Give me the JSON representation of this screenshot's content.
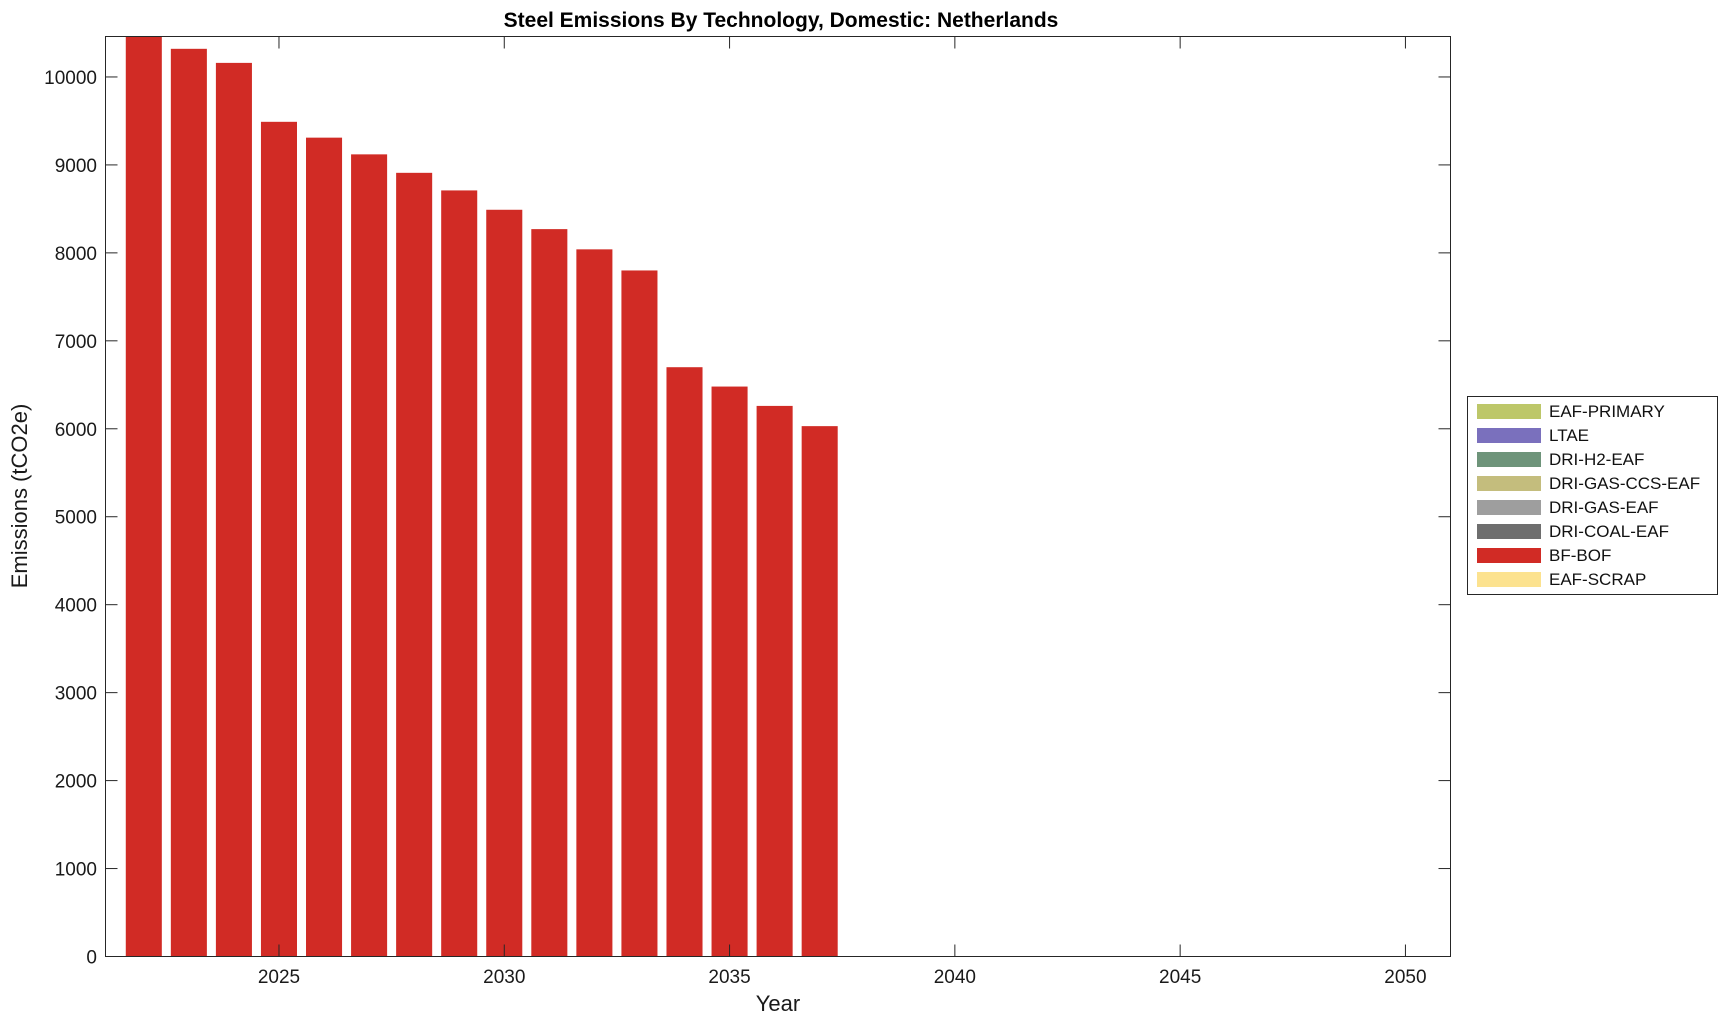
{
  "chart_data": {
    "type": "bar",
    "stacked": true,
    "title": "Steel Emissions By Technology, Domestic: Netherlands",
    "xlabel": "Year",
    "ylabel": "Emissions (tCO2e)",
    "xlim": [
      2021.15,
      2051.0
    ],
    "ylim": [
      0,
      10460
    ],
    "x_ticks": [
      2025,
      2030,
      2035,
      2040,
      2045,
      2050
    ],
    "y_ticks": [
      0,
      1000,
      2000,
      3000,
      4000,
      5000,
      6000,
      7000,
      8000,
      9000,
      10000
    ],
    "grid": false,
    "legend_position": "right",
    "x": [
      2022,
      2023,
      2024,
      2025,
      2026,
      2027,
      2028,
      2029,
      2030,
      2031,
      2032,
      2033,
      2034,
      2035,
      2036,
      2037
    ],
    "series": [
      {
        "name": "EAF-PRIMARY",
        "color": "#bdc769",
        "values": [
          0,
          0,
          0,
          0,
          0,
          0,
          0,
          0,
          0,
          0,
          0,
          0,
          0,
          0,
          0,
          0
        ]
      },
      {
        "name": "LTAE",
        "color": "#7a70bd",
        "values": [
          0,
          0,
          0,
          0,
          0,
          0,
          0,
          0,
          0,
          0,
          0,
          0,
          0,
          0,
          0,
          0
        ]
      },
      {
        "name": "DRI-H2-EAF",
        "color": "#6e947a",
        "values": [
          0,
          0,
          0,
          0,
          0,
          0,
          0,
          0,
          0,
          0,
          0,
          0,
          0,
          0,
          0,
          0
        ]
      },
      {
        "name": "DRI-GAS-CCS-EAF",
        "color": "#c4bd7d",
        "values": [
          0,
          0,
          0,
          0,
          0,
          0,
          0,
          0,
          0,
          0,
          0,
          0,
          0,
          0,
          0,
          0
        ]
      },
      {
        "name": "DRI-GAS-EAF",
        "color": "#9e9e9e",
        "values": [
          0,
          0,
          0,
          0,
          0,
          0,
          0,
          0,
          0,
          0,
          0,
          0,
          0,
          0,
          0,
          0
        ]
      },
      {
        "name": "DRI-COAL-EAF",
        "color": "#6e6e6e",
        "values": [
          0,
          0,
          0,
          0,
          0,
          0,
          0,
          0,
          0,
          0,
          0,
          0,
          0,
          0,
          0,
          0
        ]
      },
      {
        "name": "BF-BOF",
        "color": "#d12b25",
        "values": [
          10460,
          10320,
          10160,
          9490,
          9310,
          9120,
          8910,
          8710,
          8490,
          8270,
          8040,
          7800,
          6700,
          6480,
          6260,
          6030
        ]
      },
      {
        "name": "EAF-SCRAP",
        "color": "#fce28f",
        "values": [
          0,
          0,
          0,
          0,
          0,
          0,
          0,
          0,
          0,
          0,
          0,
          0,
          0,
          0,
          0,
          0
        ]
      }
    ]
  }
}
